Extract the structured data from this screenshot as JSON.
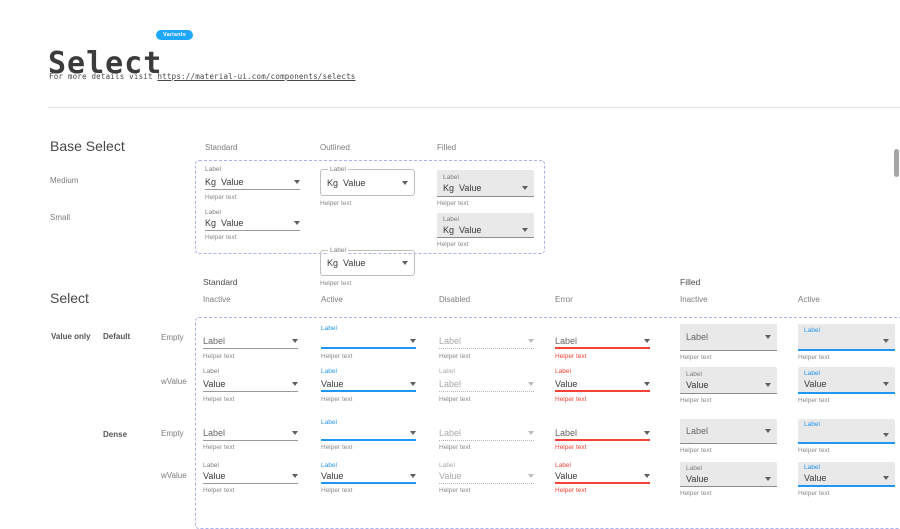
{
  "page": {
    "title": "Select",
    "badge": "Variants",
    "subtitle_prefix": "For more details visit",
    "subtitle_link": "https://material-ui.com/components/selects"
  },
  "base_select": {
    "heading": "Base Select",
    "columns": [
      "Standard",
      "Outlined",
      "Filled"
    ],
    "rows": [
      "Medium",
      "Small"
    ],
    "field": {
      "label": "Label",
      "adornment": "Kg",
      "value": "Value",
      "helper": "Helper text"
    }
  },
  "select_states": {
    "heading": "Select",
    "group_headers": [
      "Standard",
      "Filled"
    ],
    "column_headers": [
      "Inactive",
      "Active",
      "Disabled",
      "Error",
      "Inactive",
      "Active"
    ],
    "side_label": "Value only",
    "rows": [
      {
        "density": "Default",
        "kind": "Empty",
        "cells": [
          {
            "variant": "standard",
            "state": "inactive",
            "top_label": "",
            "value": "Label",
            "helper": "Helper text"
          },
          {
            "variant": "standard",
            "state": "active",
            "top_label": "Label",
            "value": "",
            "helper": "Helper text"
          },
          {
            "variant": "standard",
            "state": "disabled",
            "top_label": "",
            "value": "Label",
            "helper": "Helper text"
          },
          {
            "variant": "standard",
            "state": "error",
            "top_label": "",
            "value": "Label",
            "helper": "Helper text"
          },
          {
            "variant": "filled",
            "state": "inactive",
            "top_label": "",
            "value": "Label",
            "helper": "Helper text"
          },
          {
            "variant": "filled",
            "state": "active",
            "top_label": "Label",
            "value": "",
            "helper": "Helper text"
          }
        ]
      },
      {
        "density": "Default",
        "kind": "wValue",
        "cells": [
          {
            "variant": "standard",
            "state": "inactive",
            "top_label": "Label",
            "value": "Value",
            "helper": "Helper text"
          },
          {
            "variant": "standard",
            "state": "active",
            "top_label": "Label",
            "value": "Value",
            "helper": "Helper text"
          },
          {
            "variant": "standard",
            "state": "disabled",
            "top_label": "Label",
            "value": "Label",
            "helper": "Helper text"
          },
          {
            "variant": "standard",
            "state": "error",
            "top_label": "Label",
            "value": "Value",
            "helper": "Helper text"
          },
          {
            "variant": "filled",
            "state": "inactive",
            "top_label": "Label",
            "value": "Value",
            "helper": "Helper text"
          },
          {
            "variant": "filled",
            "state": "active",
            "top_label": "Label",
            "value": "Value",
            "helper": "Helper text"
          }
        ]
      },
      {
        "density": "Dense",
        "kind": "Empty",
        "cells": [
          {
            "variant": "standard",
            "state": "inactive",
            "top_label": "",
            "value": "Label",
            "helper": "Helper text"
          },
          {
            "variant": "standard",
            "state": "active",
            "top_label": "Label",
            "value": "",
            "helper": "Helper text"
          },
          {
            "variant": "standard",
            "state": "disabled",
            "top_label": "",
            "value": "Label",
            "helper": "Helper text"
          },
          {
            "variant": "standard",
            "state": "error",
            "top_label": "",
            "value": "Label",
            "helper": "Helper text"
          },
          {
            "variant": "filled",
            "state": "inactive",
            "top_label": "",
            "value": "Label",
            "helper": "Helper text"
          },
          {
            "variant": "filled",
            "state": "active",
            "top_label": "Label",
            "value": "",
            "helper": "Helper text"
          }
        ]
      },
      {
        "density": "Dense",
        "kind": "wValue",
        "cells": [
          {
            "variant": "standard",
            "state": "inactive",
            "top_label": "Label",
            "value": "Value",
            "helper": "Helper text"
          },
          {
            "variant": "standard",
            "state": "active",
            "top_label": "Label",
            "value": "Value",
            "helper": "Helper text"
          },
          {
            "variant": "standard",
            "state": "disabled",
            "top_label": "Label",
            "value": "Value",
            "helper": "Helper text"
          },
          {
            "variant": "standard",
            "state": "error",
            "top_label": "Label",
            "value": "Value",
            "helper": "Helper text"
          },
          {
            "variant": "filled",
            "state": "inactive",
            "top_label": "Label",
            "value": "Value",
            "helper": "Helper text"
          },
          {
            "variant": "filled",
            "state": "active",
            "top_label": "Label",
            "value": "Value",
            "helper": "Helper text"
          }
        ]
      }
    ]
  },
  "colors": {
    "accent_blue": "#2196f3",
    "error_red": "#f44336",
    "badge_blue": "#1ea7fd",
    "dashed_border": "#a9b2ea",
    "filled_bg": "#e9e9e9"
  }
}
